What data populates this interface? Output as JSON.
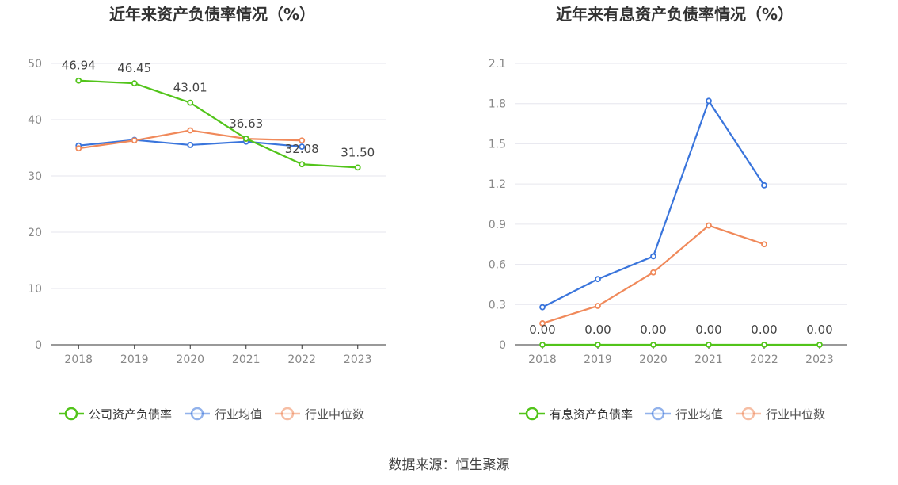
{
  "source_text": "数据来源：恒生聚源",
  "colors": {
    "company": "#52c41a",
    "average": "#3a75dc",
    "median": "#f0895a"
  },
  "chart_data": [
    {
      "type": "line",
      "title": "近年来资产负债率情况（%）",
      "categories": [
        "2018",
        "2019",
        "2020",
        "2021",
        "2022",
        "2023"
      ],
      "ylim": [
        0,
        50
      ],
      "yticks": [
        "0",
        "10",
        "20",
        "30",
        "40",
        "50"
      ],
      "grid": true,
      "legend_position": "bottom",
      "series": [
        {
          "name": "公司资产负债率",
          "values": [
            46.94,
            46.45,
            43.01,
            36.63,
            32.08,
            31.5
          ],
          "labels": [
            "46.94",
            "46.45",
            "43.01",
            "36.63",
            "32.08",
            "31.50"
          ]
        },
        {
          "name": "行业均值",
          "values": [
            35.4,
            36.4,
            35.5,
            36.1,
            35.2,
            null
          ]
        },
        {
          "name": "行业中位数",
          "values": [
            34.9,
            36.3,
            38.1,
            36.6,
            36.3,
            null
          ]
        }
      ]
    },
    {
      "type": "line",
      "title": "近年来有息资产负债率情况（%）",
      "categories": [
        "2018",
        "2019",
        "2020",
        "2021",
        "2022",
        "2023"
      ],
      "ylim": [
        0,
        2.1
      ],
      "yticks": [
        "0",
        "0.3",
        "0.6",
        "0.9",
        "1.2",
        "1.5",
        "1.8",
        "2.1"
      ],
      "grid": true,
      "legend_position": "bottom",
      "series": [
        {
          "name": "有息资产负债率",
          "values": [
            0,
            0,
            0,
            0,
            0,
            0
          ],
          "labels": [
            "0.00",
            "0.00",
            "0.00",
            "0.00",
            "0.00",
            "0.00"
          ]
        },
        {
          "name": "行业均值",
          "values": [
            0.28,
            0.49,
            0.66,
            1.82,
            1.19,
            null
          ]
        },
        {
          "name": "行业中位数",
          "values": [
            0.16,
            0.29,
            0.54,
            0.89,
            0.75,
            null
          ]
        }
      ]
    }
  ]
}
